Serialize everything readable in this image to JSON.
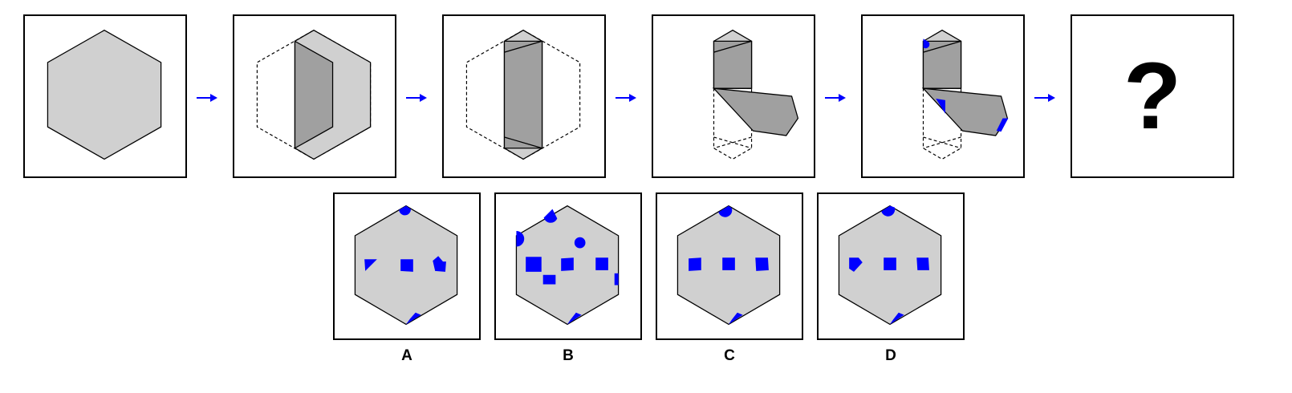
{
  "colors": {
    "paper": "#d0d0d0",
    "fold": "#a0a0a0",
    "cut": "#0000ff",
    "outline": "#000000",
    "arrow": "#0000ff"
  },
  "sequence": {
    "steps": [
      "unfolded-hexagon",
      "first-fold",
      "second-fold",
      "third-fold",
      "punched"
    ],
    "question_mark": "?"
  },
  "options": [
    {
      "label": "A"
    },
    {
      "label": "B"
    },
    {
      "label": "C"
    },
    {
      "label": "D"
    }
  ]
}
